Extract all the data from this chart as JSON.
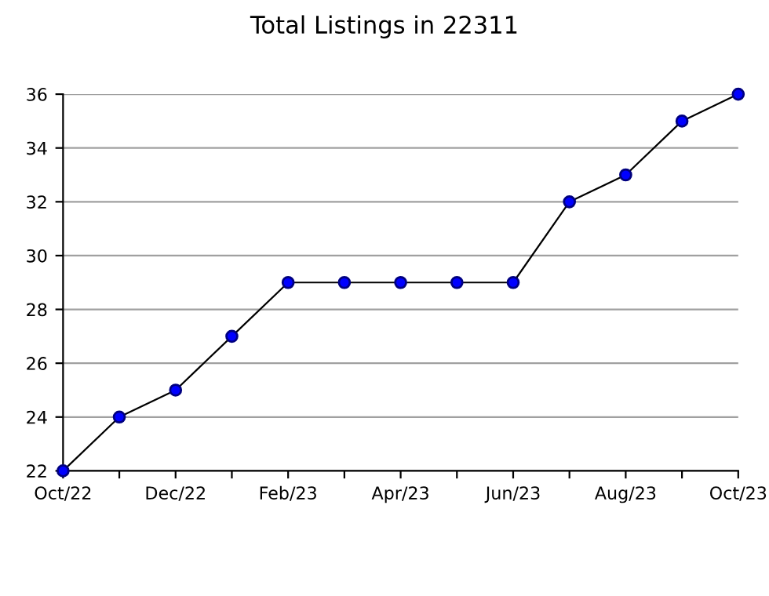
{
  "chart_data": {
    "type": "line",
    "title": "Total Listings in 22311",
    "categories": [
      "Oct/22",
      null,
      "Dec/22",
      null,
      "Feb/23",
      null,
      "Apr/23",
      null,
      "Jun/23",
      null,
      "Aug/23",
      null,
      "Oct/23"
    ],
    "series": [
      {
        "color": "#0000ff",
        "values": [
          22,
          24,
          25,
          27,
          29,
          29,
          29,
          29,
          29,
          32,
          33,
          35,
          36
        ]
      }
    ],
    "ylim": [
      22,
      36
    ],
    "yticks": [
      22,
      24,
      26,
      28,
      30,
      32,
      34,
      36
    ],
    "grid": "y",
    "marker": "circle",
    "line_style": "solid"
  }
}
